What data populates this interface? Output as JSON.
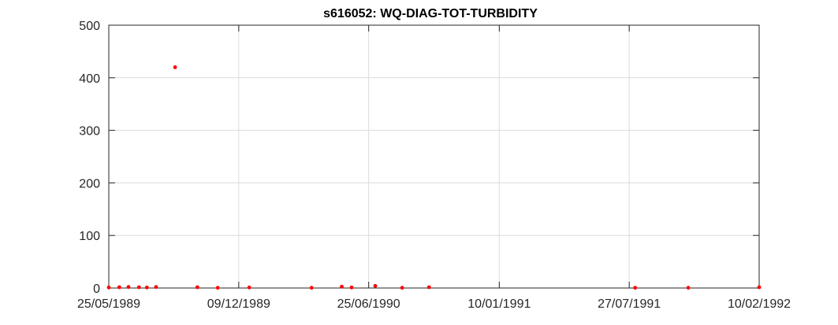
{
  "chart_data": {
    "type": "scatter",
    "title": "s616052: WQ-DIAG-TOT-TURBIDITY",
    "xlabel": "",
    "ylabel": "",
    "x_axis_type": "date",
    "xlim": [
      "1989-05-25",
      "1992-02-10"
    ],
    "ylim": [
      0,
      500
    ],
    "x_ticks": [
      {
        "date": "1989-05-25",
        "label": "25/05/1989"
      },
      {
        "date": "1989-12-09",
        "label": "09/12/1989"
      },
      {
        "date": "1990-06-25",
        "label": "25/06/1990"
      },
      {
        "date": "1991-01-10",
        "label": "10/01/1991"
      },
      {
        "date": "1991-07-27",
        "label": "27/07/1991"
      },
      {
        "date": "1992-02-10",
        "label": "10/02/1992"
      }
    ],
    "y_ticks": [
      0,
      100,
      200,
      300,
      400,
      500
    ],
    "grid": true,
    "legend": "none",
    "marker_color": "#ff0000",
    "series": [
      {
        "points": [
          {
            "x": "1989-05-25",
            "y": 1
          },
          {
            "x": "1989-06-10",
            "y": 1.5
          },
          {
            "x": "1989-06-24",
            "y": 2
          },
          {
            "x": "1989-07-10",
            "y": 1.5
          },
          {
            "x": "1989-07-22",
            "y": 1
          },
          {
            "x": "1989-08-05",
            "y": 2
          },
          {
            "x": "1989-09-03",
            "y": 420
          },
          {
            "x": "1989-10-07",
            "y": 1.5
          },
          {
            "x": "1989-11-07",
            "y": 0.5
          },
          {
            "x": "1989-12-25",
            "y": 1
          },
          {
            "x": "1990-03-30",
            "y": 0.5
          },
          {
            "x": "1990-05-15",
            "y": 2.5
          },
          {
            "x": "1990-05-30",
            "y": 1
          },
          {
            "x": "1990-07-05",
            "y": 4
          },
          {
            "x": "1990-08-15",
            "y": 0.5
          },
          {
            "x": "1990-09-25",
            "y": 1.5
          },
          {
            "x": "1991-08-05",
            "y": 0.5
          },
          {
            "x": "1991-10-25",
            "y": 0.5
          },
          {
            "x": "1992-02-10",
            "y": 1.5
          }
        ]
      }
    ]
  }
}
